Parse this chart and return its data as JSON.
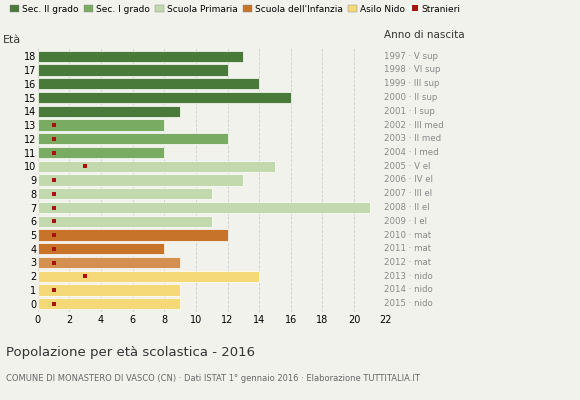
{
  "ages": [
    18,
    17,
    16,
    15,
    14,
    13,
    12,
    11,
    10,
    9,
    8,
    7,
    6,
    5,
    4,
    3,
    2,
    1,
    0
  ],
  "bar_values": [
    13,
    12,
    14,
    16,
    9,
    8,
    12,
    8,
    15,
    13,
    11,
    21,
    11,
    12,
    8,
    9,
    14,
    9,
    9
  ],
  "bar_colors": [
    "#4a7a3a",
    "#4a7a3a",
    "#4a7a3a",
    "#4a7a3a",
    "#4a7a3a",
    "#7aab62",
    "#7aab62",
    "#7aab62",
    "#c2d9ad",
    "#c2d9ad",
    "#c2d9ad",
    "#c2d9ad",
    "#c2d9ad",
    "#c8732a",
    "#c8732a",
    "#d49050",
    "#f5d878",
    "#f5d878",
    "#f5d878"
  ],
  "stranieri_values": [
    null,
    null,
    null,
    null,
    null,
    1,
    1,
    1,
    3,
    1,
    1,
    1,
    1,
    1,
    1,
    1,
    3,
    1,
    1
  ],
  "right_labels": [
    "1997 · V sup",
    "1998 · VI sup",
    "1999 · III sup",
    "2000 · II sup",
    "2001 · I sup",
    "2002 · III med",
    "2003 · II med",
    "2004 · I med",
    "2005 · V el",
    "2006 · IV el",
    "2007 · III el",
    "2008 · II el",
    "2009 · I el",
    "2010 · mat",
    "2011 · mat",
    "2012 · mat",
    "2013 · nido",
    "2014 · nido",
    "2015 · nido"
  ],
  "legend_labels": [
    "Sec. II grado",
    "Sec. I grado",
    "Scuola Primaria",
    "Scuola dell'Infanzia",
    "Asilo Nido",
    "Stranieri"
  ],
  "legend_colors": [
    "#4a7a3a",
    "#7aab62",
    "#c2d9ad",
    "#c8732a",
    "#f5d878",
    "#aa1111"
  ],
  "title1": "Popolazione per età scolastica - 2016",
  "title2": "COMUNE DI MONASTERO DI VASCO (CN) · Dati ISTAT 1° gennaio 2016 · Elaborazione TUTTITALIA.IT",
  "ylabel_left": "Età",
  "ylabel_right": "Anno di nascita",
  "xlim": [
    0,
    22
  ],
  "xticks": [
    0,
    2,
    4,
    6,
    8,
    10,
    12,
    14,
    16,
    18,
    20,
    22
  ],
  "background_color": "#f2f2ed",
  "grid_color": "#cccccc",
  "stranieri_color": "#aa1111",
  "bar_height": 0.82
}
